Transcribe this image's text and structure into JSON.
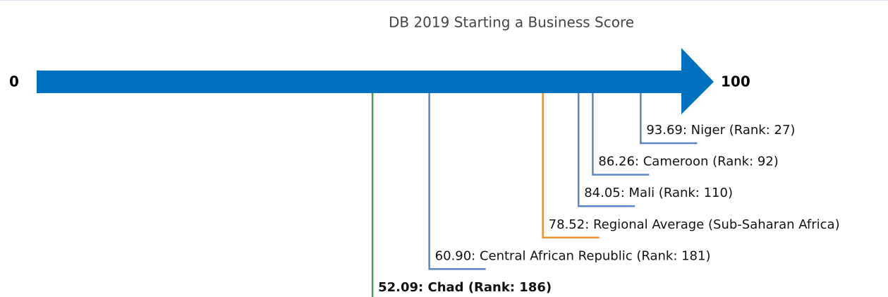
{
  "chart_data": {
    "type": "score_arrow",
    "title": "DB 2019 Starting a Business Score",
    "xlim": [
      0,
      100
    ],
    "xticks": [
      0,
      100
    ],
    "values": [
      52.09,
      60.9,
      78.52,
      84.05,
      86.26,
      93.69
    ],
    "value_labels": [
      "52.09: Chad (Rank: 186)",
      "60.90: Central African Republic (Rank: 181)",
      "78.52: Regional Average (Sub-Saharan Africa)",
      "84.05: Mali (Rank: 110)",
      "86.26: Cameroon (Rank: 92)",
      "93.69: Niger (Rank: 27)"
    ],
    "colors": [
      "#3aa655",
      "#5b84c4",
      "#f0902a",
      "#5b84c4",
      "#5b84c4",
      "#5b84c4"
    ],
    "highlight_index": 0,
    "arrow_color": "#0070c0"
  }
}
